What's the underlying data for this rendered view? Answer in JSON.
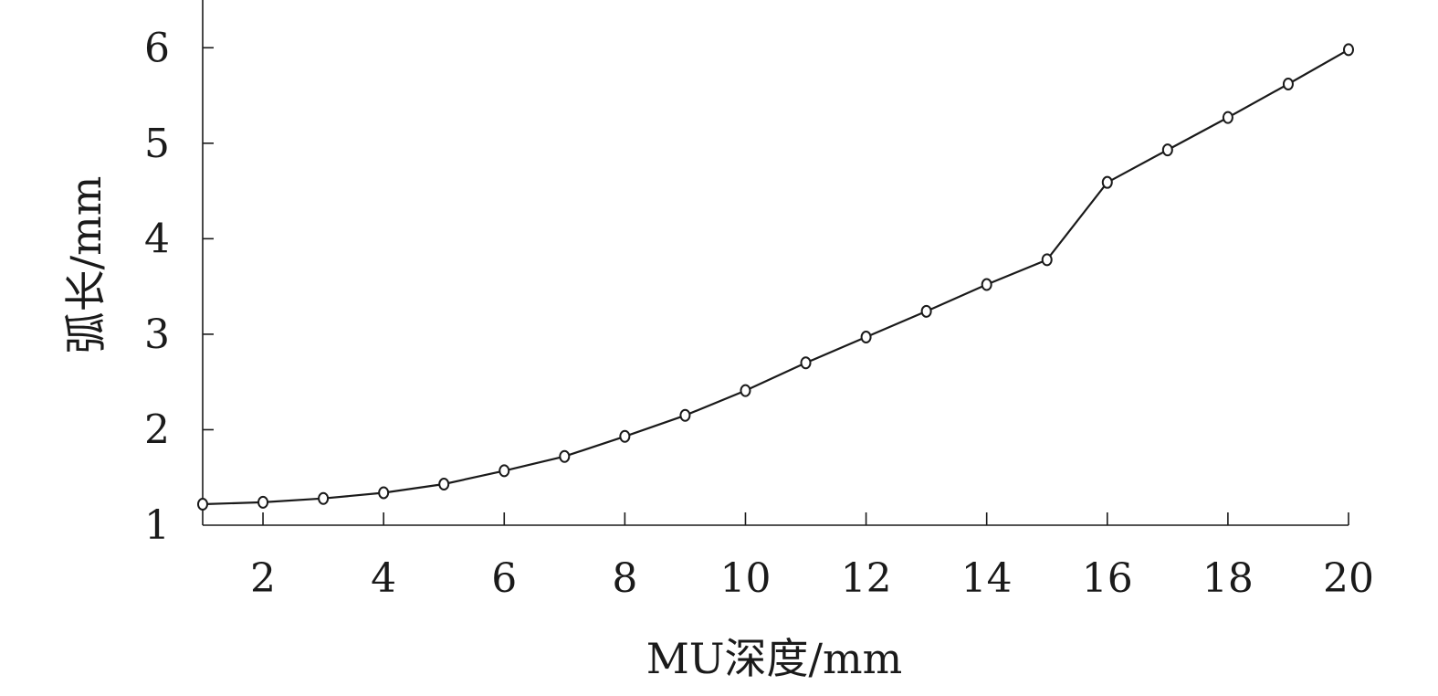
{
  "chart_data": {
    "type": "line",
    "xlabel": "MU深度/mm",
    "ylabel": "弧长/mm",
    "xlim": [
      1,
      20
    ],
    "ylim": [
      1,
      6.5
    ],
    "xticks": [
      2,
      4,
      6,
      8,
      10,
      12,
      14,
      16,
      18,
      20
    ],
    "yticks": [
      1,
      2,
      3,
      4,
      5,
      6
    ],
    "grid": false,
    "marker": "circle",
    "series": [
      {
        "x": [
          1,
          2,
          3,
          4,
          5,
          6,
          7,
          8,
          9,
          10,
          11,
          12,
          13,
          14,
          15,
          16,
          17,
          18,
          19,
          20
        ],
        "y": [
          1.22,
          1.24,
          1.28,
          1.34,
          1.43,
          1.57,
          1.72,
          1.93,
          2.15,
          2.41,
          2.7,
          2.97,
          3.24,
          3.52,
          3.78,
          4.59,
          4.93,
          5.27,
          5.62,
          5.98
        ]
      }
    ]
  }
}
